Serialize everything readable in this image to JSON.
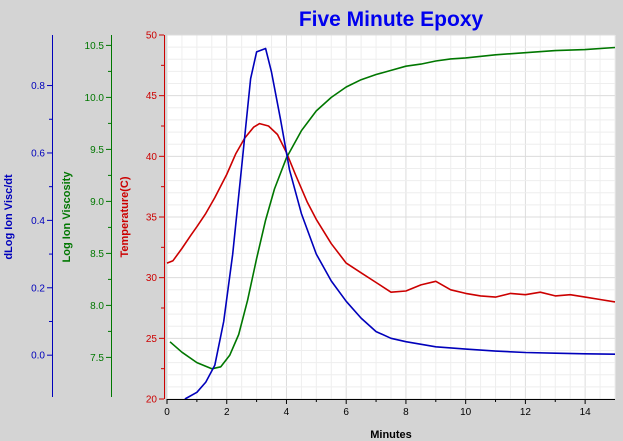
{
  "chart_data": {
    "type": "line",
    "title": "Five Minute Epoxy",
    "xlabel": "Minutes",
    "xlim": [
      0,
      15
    ],
    "x_ticks": [
      0,
      2,
      4,
      6,
      8,
      10,
      12,
      14
    ],
    "grid": true,
    "colors": {
      "title": "#0000ee",
      "temperature": "#cc0000",
      "log_ion_viscosity": "#007700",
      "dlog_ion_visc_dt": "#0000bb",
      "x_axis": "#000000"
    },
    "y_axes": [
      {
        "id": "dlog",
        "label": "dLog Ion Visc/dt",
        "ylim": [
          -0.13,
          0.95
        ],
        "ticks": [
          0.0,
          0.2,
          0.4,
          0.6,
          0.8
        ],
        "tick_labels": [
          "0.0",
          "0.2",
          "0.4",
          "0.6",
          "0.8"
        ]
      },
      {
        "id": "logvisc",
        "label": "Log Ion Viscosity",
        "ylim": [
          7.1,
          10.6
        ],
        "ticks": [
          7.5,
          8.0,
          8.5,
          9.0,
          9.5,
          10.0,
          10.5
        ],
        "tick_labels": [
          "7.5",
          "8.0",
          "8.5",
          "9.0",
          "9.5",
          "10.0",
          "10.5"
        ]
      },
      {
        "id": "temp",
        "label": "Temperature(C)",
        "ylim": [
          20,
          50
        ],
        "ticks": [
          20,
          25,
          30,
          35,
          40,
          45,
          50
        ],
        "tick_labels": [
          "20",
          "25",
          "30",
          "35",
          "40",
          "45",
          "50"
        ]
      }
    ],
    "series": [
      {
        "axis": "temp",
        "x": [
          0,
          0.2,
          0.5,
          0.8,
          1.0,
          1.3,
          1.6,
          2.0,
          2.3,
          2.6,
          2.9,
          3.1,
          3.4,
          3.7,
          4.0,
          4.3,
          4.7,
          5.0,
          5.5,
          6.0,
          6.5,
          7.0,
          7.5,
          8.0,
          8.5,
          9.0,
          9.5,
          10.0,
          10.5,
          11.0,
          11.5,
          12.0,
          12.5,
          13.0,
          13.5,
          14.0,
          14.5,
          15.0
        ],
        "y": [
          31.2,
          31.4,
          32.4,
          33.5,
          34.2,
          35.3,
          36.6,
          38.5,
          40.2,
          41.5,
          42.4,
          42.7,
          42.5,
          41.8,
          40.3,
          38.5,
          36.2,
          34.8,
          32.8,
          31.2,
          30.4,
          29.6,
          28.8,
          28.9,
          29.4,
          29.7,
          29.0,
          28.7,
          28.5,
          28.4,
          28.7,
          28.6,
          28.8,
          28.5,
          28.6,
          28.4,
          28.2,
          28.0
        ]
      },
      {
        "axis": "logvisc",
        "x": [
          0.1,
          0.5,
          1.0,
          1.5,
          1.8,
          2.1,
          2.4,
          2.7,
          3.0,
          3.3,
          3.6,
          4.0,
          4.5,
          5.0,
          5.5,
          6.0,
          6.5,
          7.0,
          7.5,
          8.0,
          8.5,
          9.0,
          9.5,
          10.0,
          11.0,
          12.0,
          13.0,
          14.0,
          15.0
        ],
        "y": [
          7.65,
          7.55,
          7.45,
          7.39,
          7.41,
          7.52,
          7.72,
          8.05,
          8.45,
          8.82,
          9.12,
          9.42,
          9.68,
          9.87,
          10.0,
          10.1,
          10.17,
          10.22,
          10.26,
          10.3,
          10.32,
          10.35,
          10.37,
          10.38,
          10.41,
          10.43,
          10.45,
          10.46,
          10.48
        ]
      },
      {
        "axis": "dlog",
        "x": [
          0.6,
          1.0,
          1.3,
          1.6,
          1.9,
          2.2,
          2.5,
          2.8,
          3.0,
          3.3,
          3.5,
          3.8,
          4.1,
          4.5,
          5.0,
          5.5,
          6.0,
          6.5,
          7.0,
          7.5,
          8.0,
          9.0,
          10.0,
          11.0,
          12.0,
          13.0,
          14.0,
          15.0
        ],
        "y": [
          -0.13,
          -0.11,
          -0.08,
          -0.03,
          0.1,
          0.3,
          0.56,
          0.82,
          0.9,
          0.91,
          0.84,
          0.7,
          0.55,
          0.42,
          0.3,
          0.22,
          0.16,
          0.11,
          0.07,
          0.05,
          0.04,
          0.025,
          0.018,
          0.012,
          0.008,
          0.006,
          0.004,
          0.003
        ]
      }
    ]
  }
}
